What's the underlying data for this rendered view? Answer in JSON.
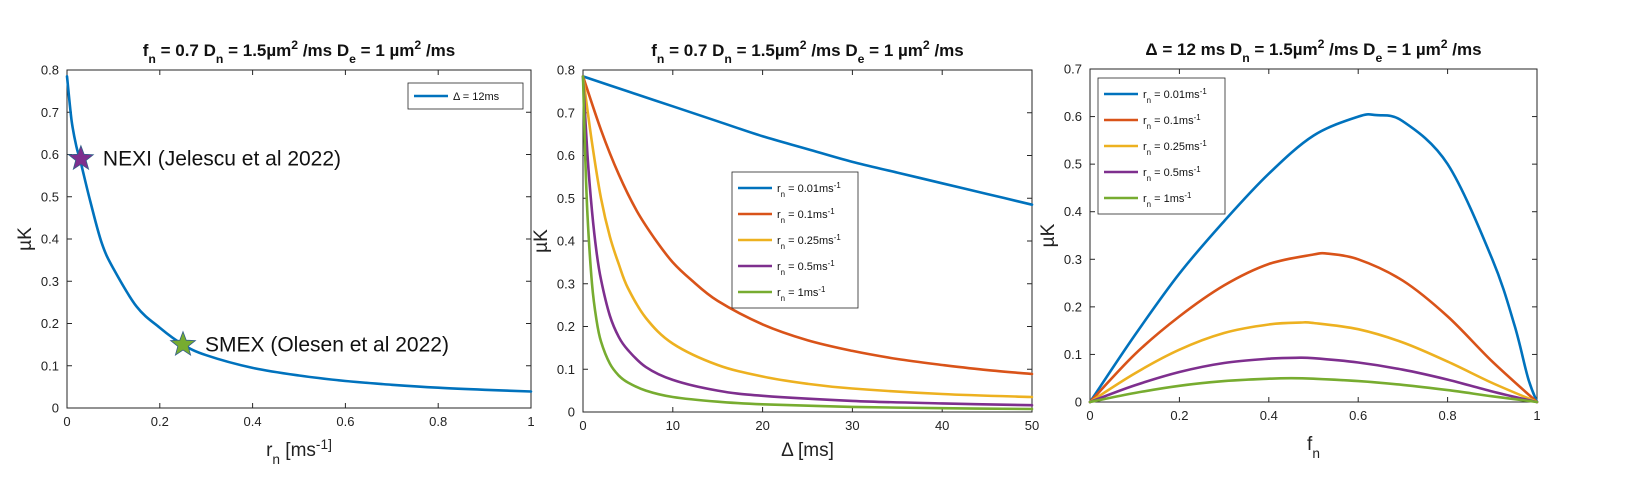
{
  "chart_data": [
    {
      "type": "line",
      "title": "f_n = 0.7 D_n = 1.5µm²/ms D_e = 1 µm²/ms",
      "xlabel": "r_n [ms⁻¹]",
      "ylabel": "µK",
      "xlim": [
        0,
        1
      ],
      "ylim": [
        0,
        0.8
      ],
      "xticks": [
        "0",
        "0.2",
        "0.4",
        "0.6",
        "0.8",
        "1"
      ],
      "yticks": [
        "0",
        "0.1",
        "0.2",
        "0.3",
        "0.4",
        "0.5",
        "0.6",
        "0.7",
        "0.8"
      ],
      "legend_position": "top-right",
      "series": [
        {
          "name": "Δ = 12ms",
          "color": "#0072BD",
          "x": [
            0,
            0.01,
            0.02,
            0.03,
            0.05,
            0.075,
            0.1,
            0.15,
            0.2,
            0.25,
            0.3,
            0.4,
            0.5,
            0.6,
            0.7,
            0.8,
            0.9,
            1.0
          ],
          "y": [
            0.785,
            0.68,
            0.62,
            0.58,
            0.49,
            0.39,
            0.33,
            0.24,
            0.19,
            0.15,
            0.125,
            0.095,
            0.077,
            0.064,
            0.055,
            0.048,
            0.043,
            0.039
          ]
        }
      ],
      "annotations": [
        {
          "text": "NEXI (Jelescu et al 2022)",
          "x": 0.03,
          "y": 0.59,
          "marker": "star",
          "color": "#7E2F8E"
        },
        {
          "text": "SMEX (Olesen et al 2022)",
          "x": 0.25,
          "y": 0.15,
          "marker": "star",
          "color": "#77AC30"
        }
      ]
    },
    {
      "type": "line",
      "title": "f_n = 0.7 D_n = 1.5µm²/ms D_e = 1 µm²/ms",
      "xlabel": "Δ [ms]",
      "ylabel": "µK",
      "xlim": [
        0,
        50
      ],
      "ylim": [
        0,
        0.8
      ],
      "xticks": [
        "0",
        "10",
        "20",
        "30",
        "40",
        "50"
      ],
      "yticks": [
        "0",
        "0.1",
        "0.2",
        "0.3",
        "0.4",
        "0.5",
        "0.6",
        "0.7",
        "0.8"
      ],
      "legend_position": "center-right",
      "series": [
        {
          "name": "r_n = 0.01ms⁻¹",
          "color": "#0072BD",
          "x": [
            0,
            5,
            10,
            15,
            20,
            25,
            30,
            35,
            40,
            45,
            50
          ],
          "y": [
            0.785,
            0.75,
            0.715,
            0.68,
            0.645,
            0.615,
            0.585,
            0.56,
            0.535,
            0.51,
            0.485
          ]
        },
        {
          "name": "r_n = 0.1ms⁻¹",
          "color": "#D95319",
          "x": [
            0,
            2,
            4,
            6,
            8,
            10,
            12,
            15,
            20,
            25,
            30,
            35,
            40,
            45,
            50
          ],
          "y": [
            0.785,
            0.66,
            0.555,
            0.47,
            0.405,
            0.35,
            0.31,
            0.26,
            0.205,
            0.168,
            0.143,
            0.124,
            0.11,
            0.098,
            0.089
          ]
        },
        {
          "name": "r_n = 0.25ms⁻¹",
          "color": "#EDB120",
          "x": [
            0,
            1,
            2,
            3,
            4,
            5,
            7,
            10,
            15,
            20,
            25,
            30,
            40,
            50
          ],
          "y": [
            0.785,
            0.63,
            0.5,
            0.41,
            0.345,
            0.29,
            0.22,
            0.16,
            0.11,
            0.083,
            0.066,
            0.055,
            0.042,
            0.035
          ]
        },
        {
          "name": "r_n = 0.5ms⁻¹",
          "color": "#7E2F8E",
          "x": [
            0,
            0.5,
            1,
            1.5,
            2,
            3,
            4,
            5,
            7,
            10,
            15,
            20,
            30,
            40,
            50
          ],
          "y": [
            0.785,
            0.6,
            0.47,
            0.375,
            0.31,
            0.225,
            0.175,
            0.145,
            0.105,
            0.075,
            0.05,
            0.038,
            0.026,
            0.02,
            0.016
          ]
        },
        {
          "name": "r_n = 1ms⁻¹",
          "color": "#77AC30",
          "x": [
            0,
            0.25,
            0.5,
            1,
            1.5,
            2,
            3,
            4,
            5,
            7,
            10,
            15,
            20,
            30,
            40,
            50
          ],
          "y": [
            0.785,
            0.6,
            0.46,
            0.3,
            0.215,
            0.165,
            0.113,
            0.085,
            0.069,
            0.05,
            0.035,
            0.024,
            0.018,
            0.012,
            0.009,
            0.007
          ]
        }
      ]
    },
    {
      "type": "line",
      "title": "Δ = 12 ms D_n = 1.5µm²/ms D_e = 1 µm²/ms",
      "xlabel": "f_n",
      "ylabel": "µK",
      "xlim": [
        0,
        1
      ],
      "ylim": [
        0,
        0.7
      ],
      "xticks": [
        "0",
        "0.2",
        "0.4",
        "0.6",
        "0.8",
        "1"
      ],
      "yticks": [
        "0",
        "0.1",
        "0.2",
        "0.3",
        "0.4",
        "0.5",
        "0.6",
        "0.7"
      ],
      "legend_position": "top-left",
      "series": [
        {
          "name": "r_n = 0.01ms⁻¹",
          "color": "#0072BD",
          "x": [
            0,
            0.1,
            0.2,
            0.3,
            0.4,
            0.5,
            0.6,
            0.64,
            0.7,
            0.8,
            0.9,
            0.95,
            0.98,
            1.0
          ],
          "y": [
            0,
            0.14,
            0.27,
            0.38,
            0.48,
            0.56,
            0.6,
            0.603,
            0.59,
            0.5,
            0.3,
            0.16,
            0.05,
            0
          ]
        },
        {
          "name": "r_n = 0.1ms⁻¹",
          "color": "#D95319",
          "x": [
            0,
            0.1,
            0.2,
            0.3,
            0.4,
            0.5,
            0.53,
            0.6,
            0.7,
            0.8,
            0.9,
            1.0
          ],
          "y": [
            0,
            0.1,
            0.18,
            0.245,
            0.29,
            0.31,
            0.312,
            0.3,
            0.255,
            0.18,
            0.085,
            0
          ]
        },
        {
          "name": "r_n = 0.25ms⁻¹",
          "color": "#EDB120",
          "x": [
            0,
            0.1,
            0.2,
            0.3,
            0.4,
            0.47,
            0.5,
            0.6,
            0.7,
            0.8,
            0.9,
            1.0
          ],
          "y": [
            0,
            0.06,
            0.11,
            0.145,
            0.163,
            0.167,
            0.166,
            0.153,
            0.125,
            0.085,
            0.04,
            0
          ]
        },
        {
          "name": "r_n = 0.5ms⁻¹",
          "color": "#7E2F8E",
          "x": [
            0,
            0.1,
            0.2,
            0.3,
            0.4,
            0.46,
            0.5,
            0.6,
            0.7,
            0.8,
            0.9,
            1.0
          ],
          "y": [
            0,
            0.035,
            0.063,
            0.082,
            0.091,
            0.093,
            0.092,
            0.083,
            0.068,
            0.047,
            0.022,
            0
          ]
        },
        {
          "name": "r_n = 1ms⁻¹",
          "color": "#77AC30",
          "x": [
            0,
            0.1,
            0.2,
            0.3,
            0.4,
            0.45,
            0.5,
            0.6,
            0.7,
            0.8,
            0.9,
            1.0
          ],
          "y": [
            0,
            0.019,
            0.034,
            0.044,
            0.049,
            0.05,
            0.049,
            0.044,
            0.036,
            0.025,
            0.012,
            0
          ]
        }
      ]
    }
  ]
}
